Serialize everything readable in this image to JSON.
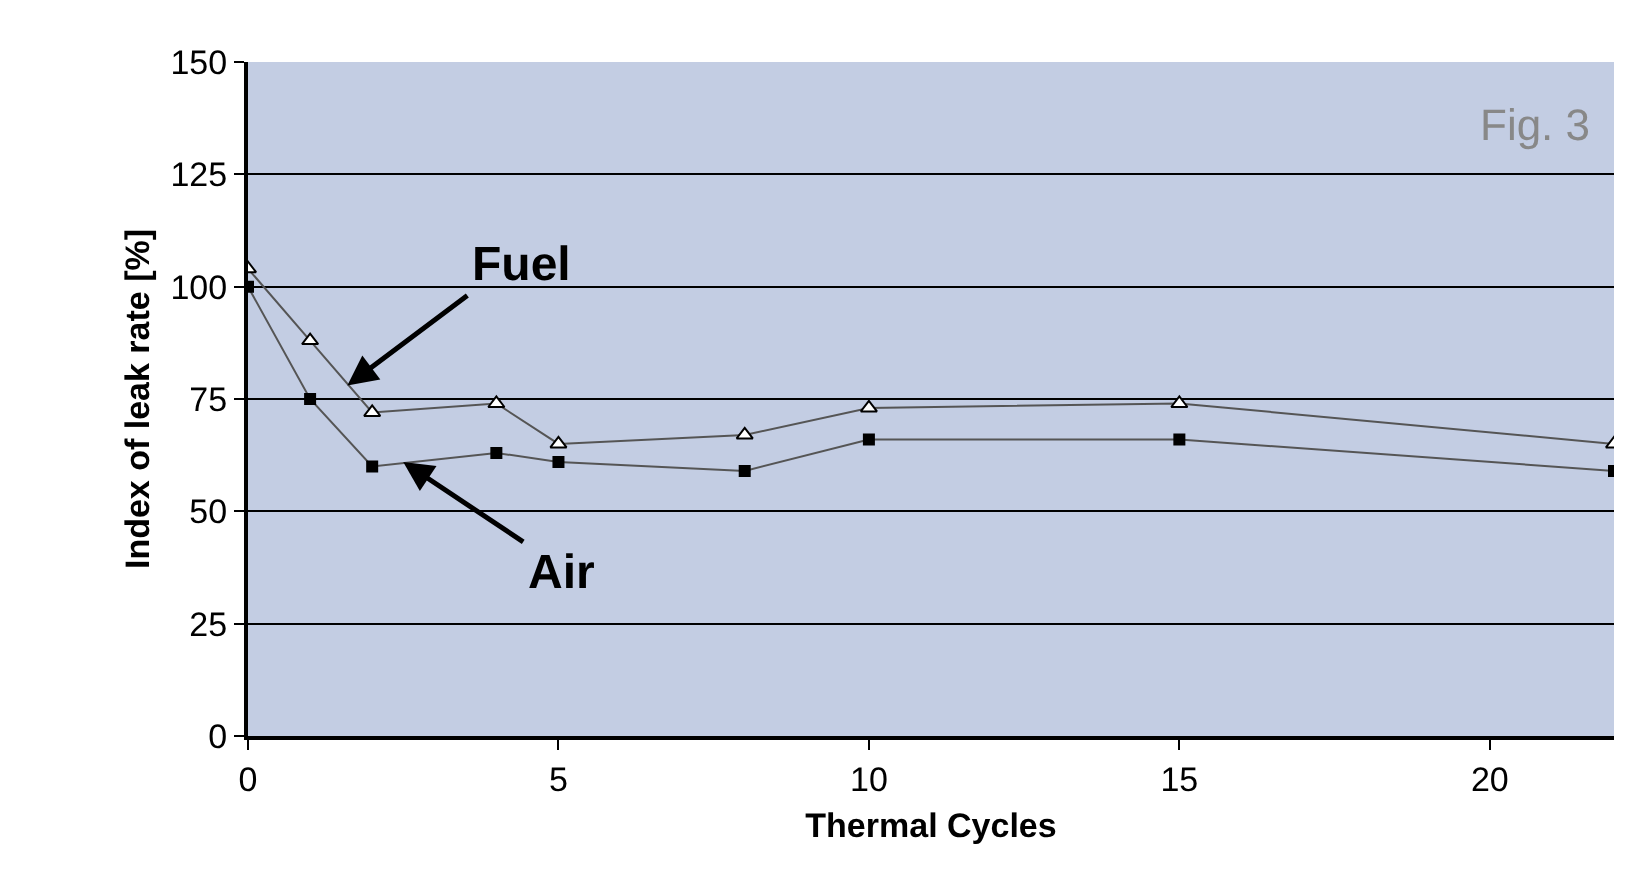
{
  "chart_data": {
    "type": "line",
    "xlabel": "Thermal Cycles",
    "ylabel": "Index of leak rate [%]",
    "x": [
      0,
      1,
      2,
      4,
      5,
      8,
      10,
      15,
      22
    ],
    "series": [
      {
        "color": "#ffffff",
        "marker": "triangle",
        "values": [
          104,
          88,
          72,
          74,
          65,
          67,
          73,
          74,
          65
        ]
      },
      {
        "color": "#000000",
        "marker": "square",
        "values": [
          100,
          75,
          60,
          63,
          61,
          59,
          66,
          66,
          59
        ]
      }
    ],
    "xlim": [
      0,
      22
    ],
    "xticks": [
      0,
      5,
      10,
      15,
      20
    ],
    "ylim": [
      0,
      150
    ],
    "yticks": [
      0,
      25,
      50,
      75,
      100,
      125,
      150
    ],
    "grid": "y",
    "legend": false,
    "annotations": [
      "Fig. 3",
      {
        "text": "Fuel",
        "x": 1.6,
        "y": 78
      },
      {
        "text": "Air",
        "x": 2.5,
        "y": 61
      }
    ]
  }
}
